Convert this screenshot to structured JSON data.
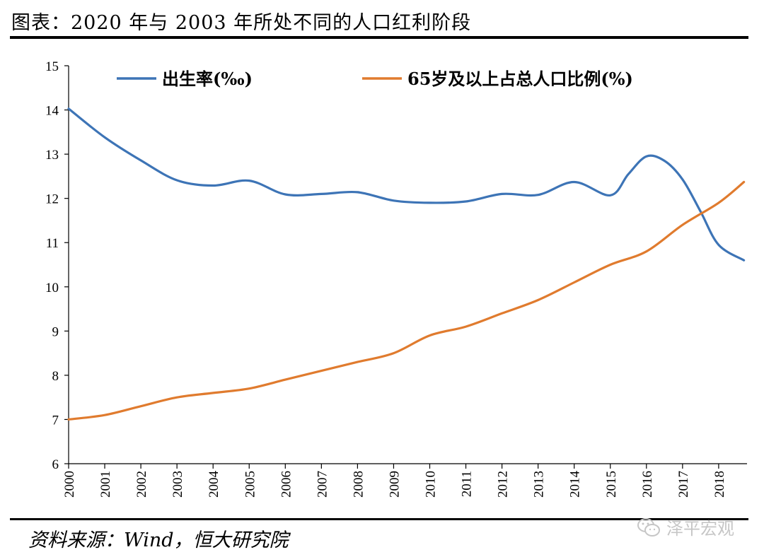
{
  "title": "图表：2020 年与 2003 年所处不同的人口红利阶段",
  "source": "资料来源：Wind，恒大研究院",
  "watermark": {
    "text": "泽平宏观",
    "icon": "wechat-icon"
  },
  "chart_data": {
    "type": "line",
    "title": "图表：2020 年与 2003 年所处不同的人口红利阶段",
    "xlabel": "",
    "ylabel": "",
    "categories": [
      "2000",
      "2001",
      "2002",
      "2003",
      "2004",
      "2005",
      "2006",
      "2007",
      "2008",
      "2009",
      "2010",
      "2011",
      "2012",
      "2013",
      "2014",
      "2015",
      "2016",
      "2017",
      "2018"
    ],
    "x": [
      2000,
      2001,
      2002,
      2003,
      2004,
      2005,
      2006,
      2007,
      2008,
      2009,
      2010,
      2011,
      2012,
      2013,
      2014,
      2015,
      2016,
      2017,
      2018
    ],
    "xlim": [
      2000,
      2018.7
    ],
    "ylim": [
      6,
      15
    ],
    "yticks": [
      6,
      7,
      8,
      9,
      10,
      11,
      12,
      13,
      14,
      15
    ],
    "grid": false,
    "legend_position": "top",
    "series": [
      {
        "name": "出生率(‰)",
        "color": "#3d74b6",
        "x": [
          2000,
          2001,
          2002,
          2003,
          2004,
          2005,
          2006,
          2007,
          2008,
          2009,
          2010,
          2011,
          2012,
          2013,
          2014,
          2015,
          2015.5,
          2016,
          2016.5,
          2017,
          2017.5,
          2018,
          2018.7
        ],
        "values": [
          14.03,
          13.38,
          12.86,
          12.41,
          12.29,
          12.4,
          12.09,
          12.1,
          12.14,
          11.95,
          11.9,
          11.93,
          12.1,
          12.08,
          12.37,
          12.07,
          12.55,
          12.95,
          12.85,
          12.43,
          11.7,
          10.95,
          10.6
        ]
      },
      {
        "name": "65岁及以上占总人口比例(%)",
        "color": "#e07b2e",
        "x": [
          2000,
          2001,
          2002,
          2003,
          2004,
          2005,
          2006,
          2007,
          2008,
          2009,
          2010,
          2011,
          2012,
          2013,
          2014,
          2015,
          2016,
          2017,
          2018,
          2018.7
        ],
        "values": [
          7.0,
          7.1,
          7.3,
          7.5,
          7.6,
          7.7,
          7.9,
          8.1,
          8.3,
          8.5,
          8.9,
          9.1,
          9.4,
          9.7,
          10.1,
          10.5,
          10.8,
          11.4,
          11.9,
          12.37
        ]
      }
    ]
  }
}
